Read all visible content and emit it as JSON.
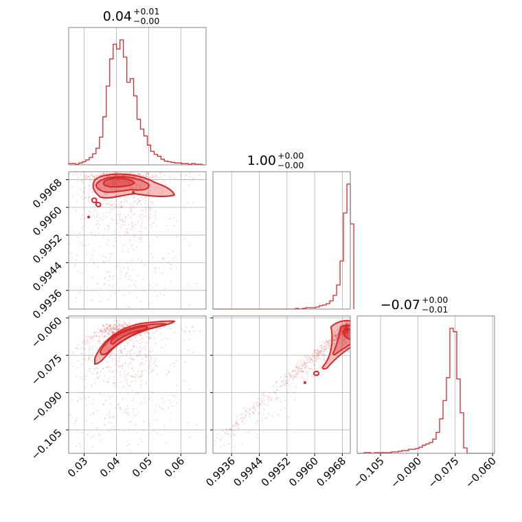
{
  "chart_data": {
    "type": "corner",
    "color": "#d62728",
    "grid": true,
    "titles": [
      {
        "main": "0.04",
        "sup": "+0.01",
        "sub": "−0.00"
      },
      {
        "main": "1.00",
        "sup": "+0.00",
        "sub": "−0.00"
      },
      {
        "main": "−0.07",
        "sup": "+0.00",
        "sub": "−0.01"
      }
    ],
    "params": [
      {
        "range": [
          0.0252,
          0.0678
        ],
        "ticks": [
          0.03,
          0.04,
          0.05,
          0.06
        ],
        "tick_labels": [
          "0.03",
          "0.04",
          "0.05",
          "0.06"
        ]
      },
      {
        "range": [
          0.99306,
          0.99703
        ],
        "ticks": [
          0.9936,
          0.9944,
          0.9952,
          0.996,
          0.9968
        ],
        "tick_labels": [
          "0.9936",
          "0.9944",
          "0.9952",
          "0.9960",
          "0.9968"
        ]
      },
      {
        "range": [
          -0.1144,
          -0.0592
        ],
        "ticks": [
          -0.105,
          -0.09,
          -0.075,
          -0.06
        ],
        "tick_labels": [
          "−0.105",
          "−0.090",
          "−0.075",
          "−0.060"
        ]
      }
    ],
    "hist1": {
      "edges_start": 0.0252,
      "bin_width": 0.00106,
      "counts": [
        2,
        2,
        1,
        3,
        5,
        8,
        12,
        18,
        27,
        45,
        78,
        128,
        172,
        196,
        188,
        203,
        175,
        134,
        140,
        112,
        74,
        58,
        47,
        32,
        22,
        17,
        14,
        9,
        6,
        5,
        4,
        3,
        3,
        2,
        2,
        1,
        2,
        1,
        1,
        0
      ]
    },
    "hist2": {
      "edges_start": 0.99306,
      "bin_width": 9.93e-05,
      "counts": [
        0,
        0,
        0,
        0,
        0,
        0,
        0,
        0,
        0,
        0,
        0,
        0,
        0,
        0,
        0,
        0,
        0,
        0,
        0,
        0,
        0,
        0,
        0,
        0,
        1,
        0,
        1,
        2,
        2,
        2,
        3,
        5,
        6,
        8,
        12,
        20,
        35,
        70,
        140,
        182,
        124
      ]
    },
    "hist3": {
      "edges_start": -0.1144,
      "bin_width": 0.00138,
      "counts": [
        0,
        0,
        1,
        1,
        0,
        1,
        1,
        1,
        1,
        1,
        2,
        2,
        3,
        4,
        4,
        6,
        6,
        7,
        9,
        12,
        14,
        16,
        21,
        31,
        51,
        78,
        112,
        185,
        180,
        110,
        60,
        8,
        0,
        0,
        0,
        0,
        0,
        0,
        0,
        0
      ]
    }
  }
}
